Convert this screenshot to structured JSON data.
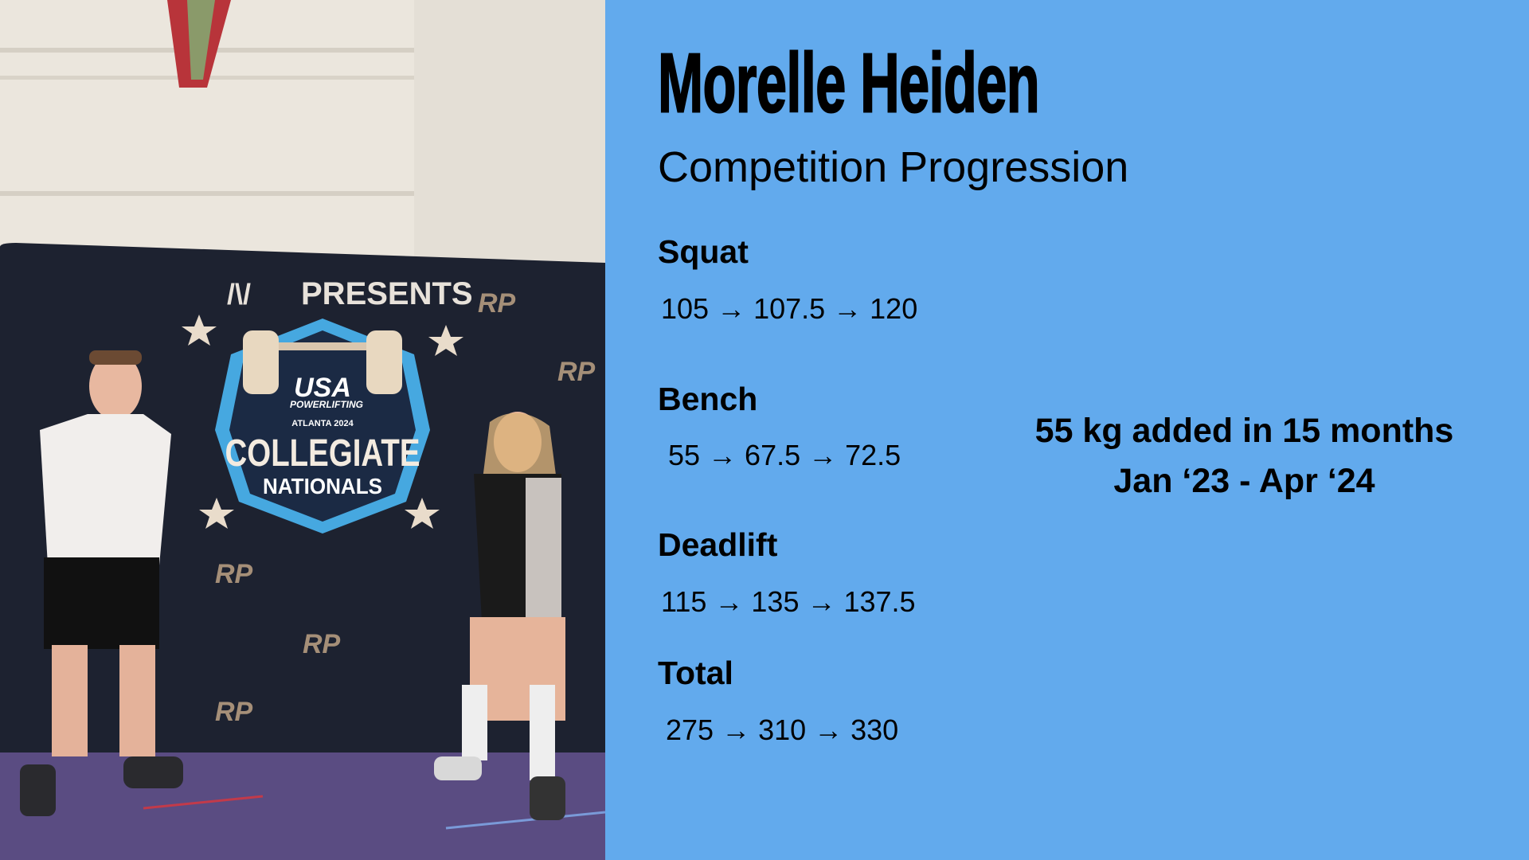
{
  "slide": {
    "title": "Morelle Heiden",
    "subtitle": "Competition Progression",
    "background_color": "#62aaed",
    "lifts": [
      {
        "label": "Squat",
        "values": "105 → 107.5 → 120"
      },
      {
        "label": "Bench",
        "values": "55 → 67.5 → 72.5"
      },
      {
        "label": "Deadlift",
        "values": "115 → 135 → 137.5"
      },
      {
        "label": "Total",
        "values": "275 → 310 → 330"
      }
    ],
    "summary": {
      "line1": "55 kg added in 15 months",
      "line2": "Jan ‘23 - Apr ‘24"
    }
  },
  "photo": {
    "description_icon": "photo-two-lifters-in-front-of-banner",
    "banner_text": {
      "presents": "PRESENTS",
      "usa": "USA",
      "powerlifting": "POWERLIFTING",
      "event_location": "ATLANTA 2024",
      "event_name_1": "COLLEGIATE",
      "event_name_2": "NATIONALS",
      "sponsor": "RP"
    }
  }
}
